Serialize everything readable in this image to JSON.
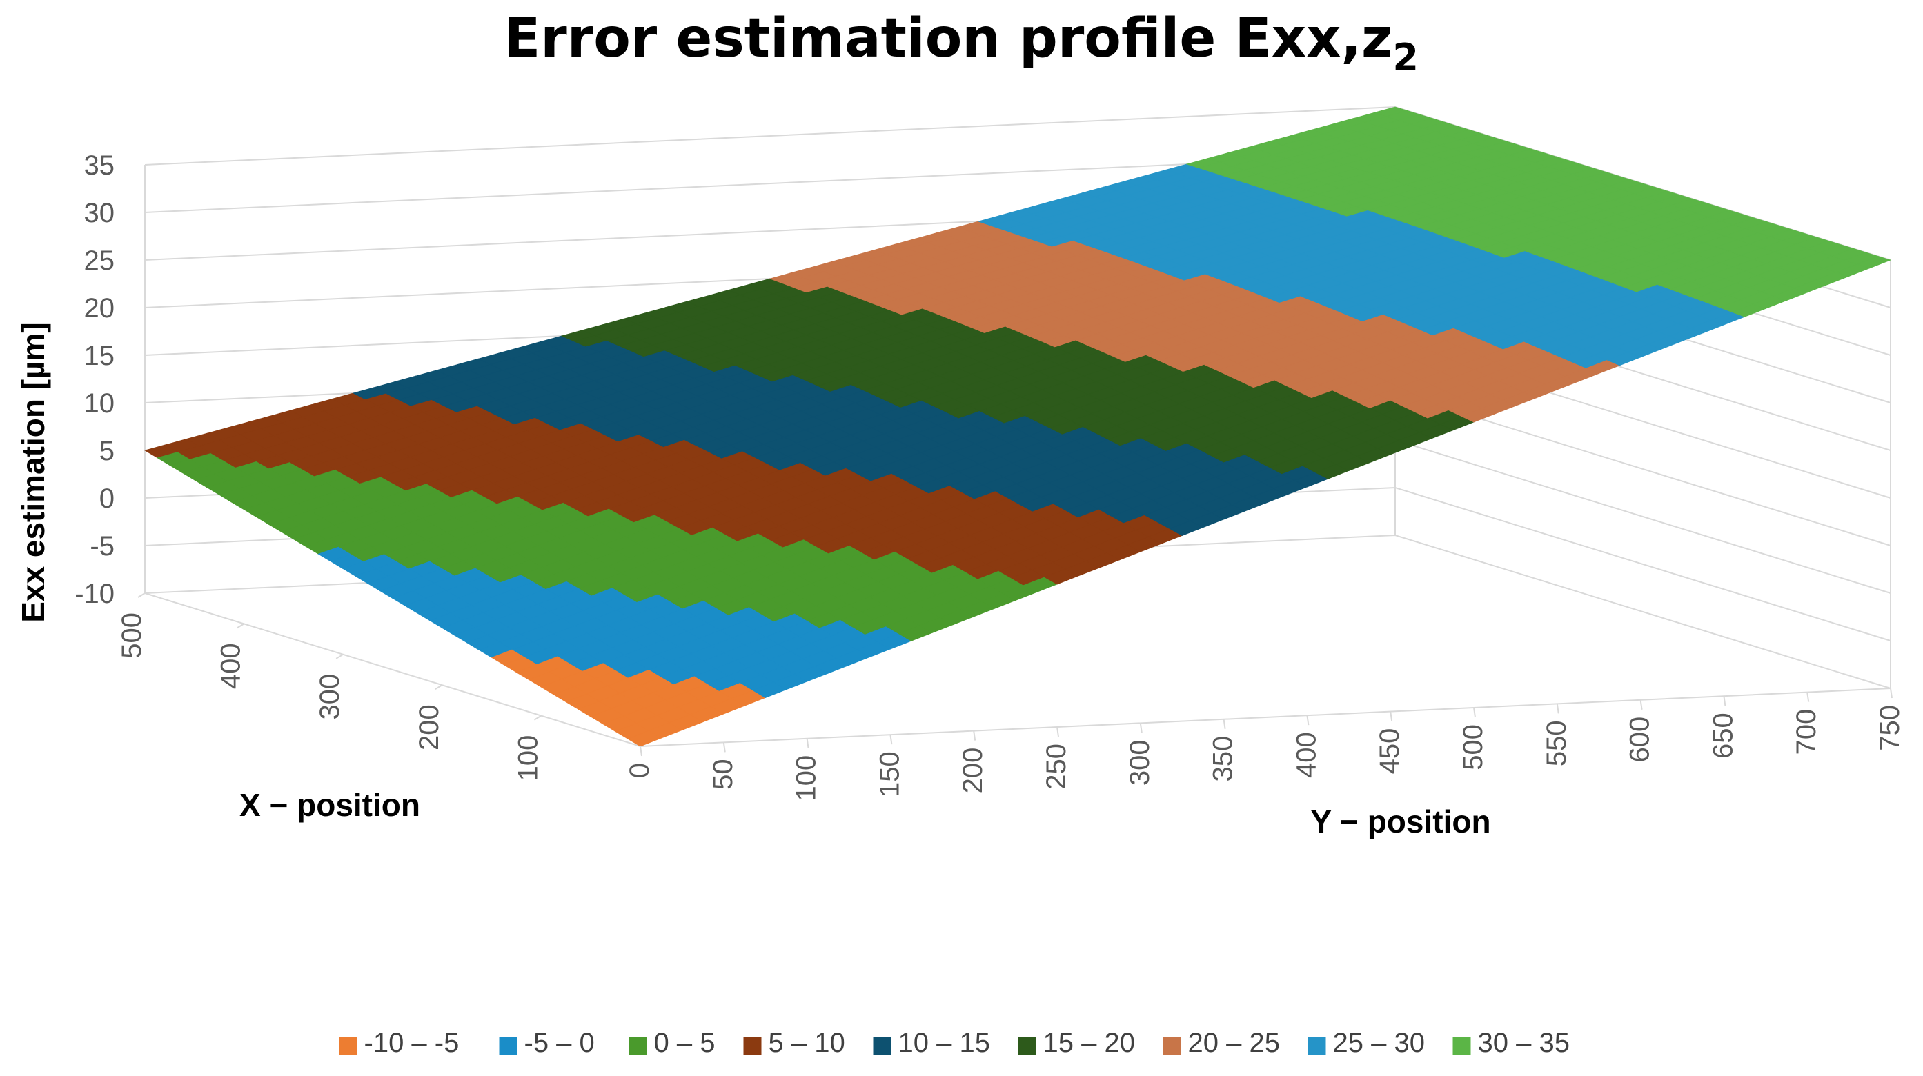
{
  "chart_data": {
    "type": "surface",
    "title": "Error estimation profile Exx,z",
    "title_subscript": "2",
    "zlabel": "Exx estimation [µm]",
    "xlabel": "X − position",
    "ylabel": "Y − position",
    "z_ticks": [
      "35",
      "30",
      "25",
      "20",
      "15",
      "10",
      "5",
      "0",
      "-5",
      "-10"
    ],
    "zlim": [
      -10,
      35
    ],
    "x_ticks": [
      "500",
      "400",
      "300",
      "200",
      "100"
    ],
    "xlim": [
      0,
      500
    ],
    "y_ticks": [
      "0",
      "50",
      "100",
      "150",
      "200",
      "250",
      "300",
      "350",
      "400",
      "450",
      "500",
      "550",
      "600",
      "650",
      "700",
      "750"
    ],
    "ylim": [
      0,
      750
    ],
    "surface_corners_z": {
      "x0_y0": -10,
      "x0_y750": 35,
      "x500_y0": 5,
      "x500_y750": 35
    },
    "bands": [
      {
        "range": "-10 – -5",
        "color": "#ed7d31"
      },
      {
        "range": "-5 – 0",
        "color": "#1a8dc8"
      },
      {
        "range": "0 – 5",
        "color": "#4a9a2c"
      },
      {
        "range": "5 – 10",
        "color": "#8b3a10"
      },
      {
        "range": "10 – 15",
        "color": "#0d5170"
      },
      {
        "range": "15 – 20",
        "color": "#2d5a1b"
      },
      {
        "range": "20 – 25",
        "color": "#c87548"
      },
      {
        "range": "25 – 30",
        "color": "#2594c8"
      },
      {
        "range": "30 – 35",
        "color": "#5bb546"
      }
    ],
    "legend_position": "bottom",
    "grid": true
  }
}
